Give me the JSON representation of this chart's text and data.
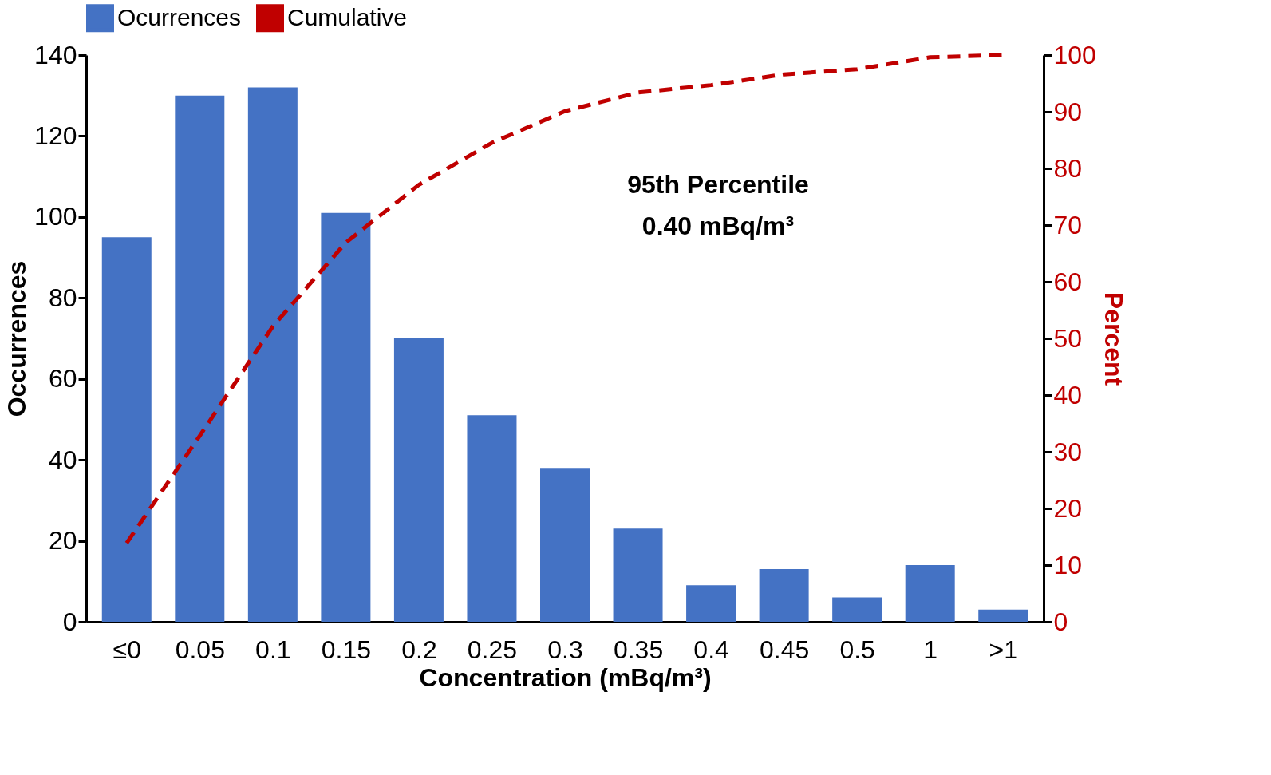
{
  "chart_data": {
    "type": "bar",
    "categories": [
      "≤0",
      "0.05",
      "0.1",
      "0.15",
      "0.2",
      "0.25",
      "0.3",
      "0.35",
      "0.4",
      "0.45",
      "0.5",
      "1",
      ">1"
    ],
    "series": [
      {
        "name": "Ocurrences",
        "color": "#4472c4",
        "values": [
          95,
          130,
          132,
          101,
          70,
          51,
          38,
          23,
          9,
          13,
          6,
          14,
          3
        ]
      },
      {
        "name": "Cumulative",
        "type": "line",
        "axis": "y2",
        "line_style": "dashed",
        "color": "#c00000",
        "values": [
          13.9,
          32.8,
          52.1,
          66.9,
          77.1,
          84.5,
          90.1,
          93.4,
          94.7,
          96.6,
          97.5,
          99.6,
          100
        ]
      }
    ],
    "xlabel": "Concentration (mBq/m³)",
    "ylabel": "Occurrences",
    "y2label": "Percent",
    "ylim": [
      0,
      140
    ],
    "yticks": [
      0,
      20,
      40,
      60,
      80,
      100,
      120,
      140
    ],
    "y2lim": [
      0,
      100
    ],
    "y2ticks": [
      0,
      10,
      20,
      30,
      40,
      50,
      60,
      70,
      80,
      90,
      100
    ],
    "annotations": [
      "95th Percentile\n0.40 mBq/m³"
    ],
    "legend": "top",
    "grid": false
  }
}
